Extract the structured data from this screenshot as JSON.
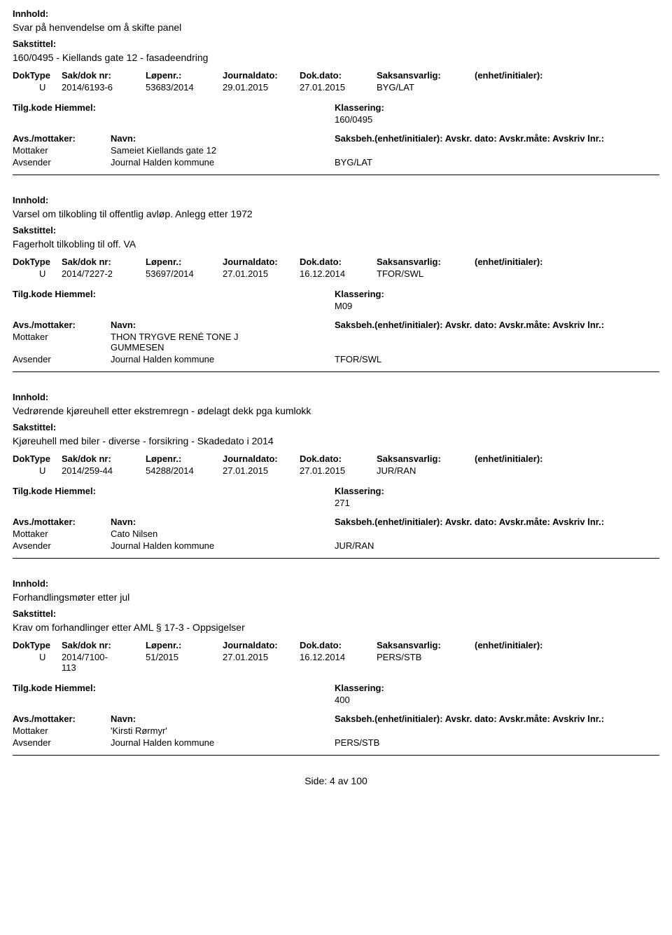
{
  "labels": {
    "innhold": "Innhold:",
    "sakstittel": "Sakstittel:",
    "doktype": "DokType",
    "sakdok": "Sak/dok nr:",
    "lopenr": "Løpenr.:",
    "journaldato": "Journaldato:",
    "dokdato": "Dok.dato:",
    "saksansvarlig": "Saksansvarlig:",
    "enhet": "(enhet/initialer):",
    "tilgkode": "Tilg.kode",
    "hjemmel": "Hiemmel:",
    "klassering": "Klassering:",
    "avsmottaker": "Avs./mottaker:",
    "navn": "Navn:",
    "saksbeh_line": "Saksbeh.(enhet/initialer): Avskr. dato:   Avskr.måte:  Avskriv lnr.:",
    "mottaker": "Mottaker",
    "avsender": "Avsender",
    "side": "Side:",
    "av": "av"
  },
  "entries": [
    {
      "innhold": "Svar på henvendelse om å skifte panel",
      "sakstittel": "160/0495 - Kiellands gate 12 - fasadeendring",
      "doktype": "U",
      "sakdok": "2014/6193-6",
      "lopenr": "53683/2014",
      "jdato": "29.01.2015",
      "ddato": "27.01.2015",
      "saksansv": "BYG/LAT",
      "klassering": "160/0495",
      "mottaker": "Sameiet Kiellands gate 12",
      "avsender": "Journal Halden kommune",
      "saksbeh": "BYG/LAT"
    },
    {
      "innhold": "Varsel om tilkobling til offentlig avløp. Anlegg etter 1972",
      "sakstittel": "Fagerholt tilkobling til off. VA",
      "doktype": "U",
      "sakdok": "2014/7227-2",
      "lopenr": "53697/2014",
      "jdato": "27.01.2015",
      "ddato": "16.12.2014",
      "saksansv": "TFOR/SWL",
      "klassering": "M09",
      "mottaker": "THON TRYGVE RENÉ TONE J GUMMESEN",
      "avsender": "Journal Halden kommune",
      "saksbeh": "TFOR/SWL"
    },
    {
      "innhold": "Vedrørende kjøreuhell etter ekstremregn - ødelagt dekk pga kumlokk",
      "sakstittel": "Kjøreuhell med biler - diverse - forsikring - Skadedato i 2014",
      "doktype": "U",
      "sakdok": "2014/259-44",
      "lopenr": "54288/2014",
      "jdato": "27.01.2015",
      "ddato": "27.01.2015",
      "saksansv": "JUR/RAN",
      "klassering": "271",
      "mottaker": "Cato Nilsen",
      "avsender": "Journal Halden kommune",
      "saksbeh": "JUR/RAN"
    },
    {
      "innhold": "Forhandlingsmøter etter jul",
      "sakstittel": "Krav om forhandlinger etter AML § 17-3  - Oppsigelser",
      "doktype": "U",
      "sakdok": "2014/7100-113",
      "lopenr": "51/2015",
      "jdato": "27.01.2015",
      "ddato": "16.12.2014",
      "saksansv": "PERS/STB",
      "klassering": "400",
      "mottaker": "'Kirsti Rørmyr'",
      "avsender": "Journal Halden kommune",
      "saksbeh": "PERS/STB"
    }
  ],
  "page": {
    "current": "4",
    "total": "100"
  }
}
